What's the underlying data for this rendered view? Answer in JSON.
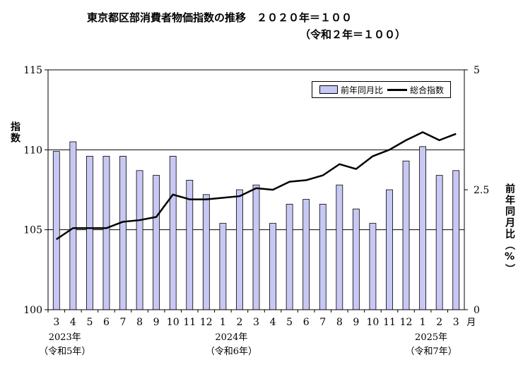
{
  "title": "東京都区部消費者物価指数の推移　２０２０年＝１００",
  "subtitle": "（令和２年＝１００）",
  "chart_data": {
    "type": "bar",
    "left_axis": {
      "label": "指数",
      "ticks": [
        "100",
        "105",
        "110",
        "115"
      ],
      "ylim": [
        100,
        115
      ]
    },
    "right_axis": {
      "label": "前年同月比（%）",
      "ticks": [
        "0",
        "2.5",
        "5"
      ],
      "ylim": [
        0,
        5
      ]
    },
    "x_unit": "月",
    "categories": [
      "3",
      "4",
      "5",
      "6",
      "7",
      "8",
      "9",
      "10",
      "11",
      "12",
      "1",
      "2",
      "3",
      "4",
      "5",
      "6",
      "7",
      "8",
      "9",
      "10",
      "11",
      "12",
      "1",
      "2",
      "3"
    ],
    "year_labels": [
      {
        "year": "2023年",
        "era": "（令和5年）",
        "at_index": 0
      },
      {
        "year": "2024年",
        "era": "（令和6年）",
        "at_index": 10
      },
      {
        "year": "2025年",
        "era": "（令和7年）",
        "at_index": 22
      }
    ],
    "grid": {
      "horizontal_lines_at_left_axis": [
        105,
        110
      ]
    },
    "legend_position": "top-right",
    "series": [
      {
        "name": "前年同月比",
        "kind": "bar",
        "axis": "right",
        "color": "#c8c8f4",
        "values": [
          3.3,
          3.5,
          3.2,
          3.2,
          3.2,
          2.9,
          2.8,
          3.2,
          2.7,
          2.4,
          1.8,
          2.5,
          2.6,
          1.8,
          2.2,
          2.3,
          2.2,
          2.6,
          2.1,
          1.8,
          2.5,
          3.1,
          3.4,
          2.8,
          2.9
        ]
      },
      {
        "name": "総合指数",
        "kind": "line",
        "axis": "left",
        "color": "#000000",
        "values": [
          104.4,
          105.1,
          105.1,
          105.1,
          105.5,
          105.6,
          105.8,
          107.2,
          106.9,
          106.9,
          107.0,
          107.1,
          107.6,
          107.5,
          108.0,
          108.1,
          108.4,
          109.1,
          108.8,
          109.6,
          110.0,
          110.6,
          111.1,
          110.6,
          111.0
        ]
      }
    ]
  }
}
